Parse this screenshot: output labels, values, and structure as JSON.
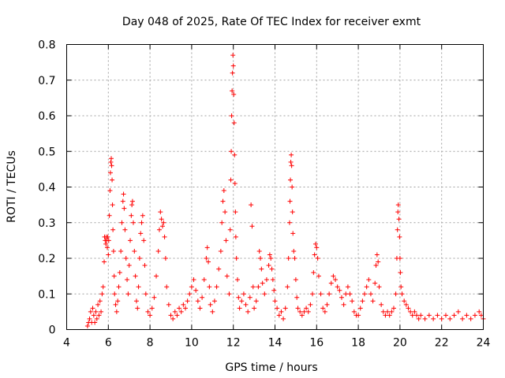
{
  "chart_data": {
    "type": "scatter",
    "title": "Day 048 of 2025, Rate Of TEC Index for receiver exmt",
    "xlabel": "GPS time / hours",
    "ylabel": "ROTI / TECUs",
    "xlim": [
      4,
      24
    ],
    "ylim": [
      0,
      0.8
    ],
    "x_ticks": [
      4,
      6,
      8,
      10,
      12,
      14,
      16,
      18,
      20,
      22,
      24
    ],
    "y_ticks": [
      0,
      0.1,
      0.2,
      0.3,
      0.4,
      0.5,
      0.6,
      0.7,
      0.8
    ],
    "x_tick_labels": [
      "4",
      "6",
      "8",
      "10",
      "12",
      "14",
      "16",
      "18",
      "20",
      "22",
      "24"
    ],
    "y_tick_labels": [
      "0",
      "0.1",
      "0.2",
      "0.3",
      "0.4",
      "0.5",
      "0.6",
      "0.7",
      "0.8"
    ],
    "grid": true,
    "marker": "plus",
    "color": "#ff0000",
    "series": [
      {
        "name": "ROTI",
        "points": [
          [
            5.0,
            0.01
          ],
          [
            5.05,
            0.02
          ],
          [
            5.1,
            0.03
          ],
          [
            5.15,
            0.05
          ],
          [
            5.2,
            0.02
          ],
          [
            5.25,
            0.06
          ],
          [
            5.3,
            0.04
          ],
          [
            5.35,
            0.02
          ],
          [
            5.4,
            0.05
          ],
          [
            5.45,
            0.03
          ],
          [
            5.5,
            0.07
          ],
          [
            5.55,
            0.04
          ],
          [
            5.6,
            0.08
          ],
          [
            5.65,
            0.05
          ],
          [
            5.7,
            0.1
          ],
          [
            5.75,
            0.12
          ],
          [
            5.8,
            0.19
          ],
          [
            5.82,
            0.26
          ],
          [
            5.85,
            0.25
          ],
          [
            5.88,
            0.24
          ],
          [
            5.9,
            0.26
          ],
          [
            5.92,
            0.25
          ],
          [
            5.95,
            0.23
          ],
          [
            5.97,
            0.26
          ],
          [
            6.0,
            0.21
          ],
          [
            6.02,
            0.25
          ],
          [
            6.05,
            0.32
          ],
          [
            6.08,
            0.39
          ],
          [
            6.1,
            0.44
          ],
          [
            6.12,
            0.47
          ],
          [
            6.14,
            0.48
          ],
          [
            6.16,
            0.46
          ],
          [
            6.18,
            0.42
          ],
          [
            6.2,
            0.35
          ],
          [
            6.22,
            0.28
          ],
          [
            6.25,
            0.22
          ],
          [
            6.28,
            0.15
          ],
          [
            6.3,
            0.1
          ],
          [
            6.35,
            0.07
          ],
          [
            6.4,
            0.05
          ],
          [
            6.45,
            0.08
          ],
          [
            6.5,
            0.12
          ],
          [
            6.55,
            0.16
          ],
          [
            6.6,
            0.22
          ],
          [
            6.65,
            0.3
          ],
          [
            6.7,
            0.36
          ],
          [
            6.73,
            0.38
          ],
          [
            6.76,
            0.34
          ],
          [
            6.8,
            0.28
          ],
          [
            6.85,
            0.2
          ],
          [
            6.9,
            0.14
          ],
          [
            6.95,
            0.1
          ],
          [
            7.0,
            0.18
          ],
          [
            7.05,
            0.25
          ],
          [
            7.1,
            0.32
          ],
          [
            7.13,
            0.35
          ],
          [
            7.16,
            0.36
          ],
          [
            7.2,
            0.3
          ],
          [
            7.25,
            0.22
          ],
          [
            7.3,
            0.15
          ],
          [
            7.35,
            0.08
          ],
          [
            7.4,
            0.06
          ],
          [
            7.45,
            0.12
          ],
          [
            7.5,
            0.2
          ],
          [
            7.55,
            0.27
          ],
          [
            7.6,
            0.3
          ],
          [
            7.65,
            0.32
          ],
          [
            7.7,
            0.25
          ],
          [
            7.75,
            0.18
          ],
          [
            7.8,
            0.1
          ],
          [
            7.9,
            0.05
          ],
          [
            8.0,
            0.04
          ],
          [
            8.1,
            0.06
          ],
          [
            8.2,
            0.09
          ],
          [
            8.3,
            0.15
          ],
          [
            8.4,
            0.22
          ],
          [
            8.45,
            0.28
          ],
          [
            8.5,
            0.33
          ],
          [
            8.55,
            0.31
          ],
          [
            8.6,
            0.29
          ],
          [
            8.65,
            0.3
          ],
          [
            8.7,
            0.26
          ],
          [
            8.75,
            0.2
          ],
          [
            8.8,
            0.12
          ],
          [
            8.9,
            0.07
          ],
          [
            9.0,
            0.04
          ],
          [
            9.1,
            0.03
          ],
          [
            9.2,
            0.05
          ],
          [
            9.3,
            0.04
          ],
          [
            9.4,
            0.06
          ],
          [
            9.5,
            0.05
          ],
          [
            9.6,
            0.07
          ],
          [
            9.7,
            0.06
          ],
          [
            9.8,
            0.08
          ],
          [
            9.9,
            0.1
          ],
          [
            10.0,
            0.12
          ],
          [
            10.1,
            0.14
          ],
          [
            10.2,
            0.11
          ],
          [
            10.3,
            0.08
          ],
          [
            10.4,
            0.06
          ],
          [
            10.5,
            0.09
          ],
          [
            10.6,
            0.14
          ],
          [
            10.7,
            0.2
          ],
          [
            10.75,
            0.23
          ],
          [
            10.8,
            0.19
          ],
          [
            10.85,
            0.12
          ],
          [
            10.9,
            0.07
          ],
          [
            11.0,
            0.05
          ],
          [
            11.1,
            0.08
          ],
          [
            11.2,
            0.12
          ],
          [
            11.3,
            0.17
          ],
          [
            11.4,
            0.22
          ],
          [
            11.45,
            0.3
          ],
          [
            11.5,
            0.36
          ],
          [
            11.55,
            0.39
          ],
          [
            11.6,
            0.33
          ],
          [
            11.65,
            0.25
          ],
          [
            11.7,
            0.15
          ],
          [
            11.8,
            0.1
          ],
          [
            11.85,
            0.28
          ],
          [
            11.88,
            0.42
          ],
          [
            11.9,
            0.5
          ],
          [
            11.92,
            0.6
          ],
          [
            11.94,
            0.67
          ],
          [
            11.96,
            0.72
          ],
          [
            11.98,
            0.77
          ],
          [
            12.0,
            0.74
          ],
          [
            12.02,
            0.66
          ],
          [
            12.04,
            0.58
          ],
          [
            12.06,
            0.49
          ],
          [
            12.08,
            0.41
          ],
          [
            12.1,
            0.33
          ],
          [
            12.12,
            0.26
          ],
          [
            12.15,
            0.2
          ],
          [
            12.2,
            0.14
          ],
          [
            12.25,
            0.09
          ],
          [
            12.3,
            0.06
          ],
          [
            12.4,
            0.08
          ],
          [
            12.5,
            0.1
          ],
          [
            12.6,
            0.07
          ],
          [
            12.7,
            0.05
          ],
          [
            12.8,
            0.09
          ],
          [
            12.85,
            0.35
          ],
          [
            12.9,
            0.29
          ],
          [
            12.95,
            0.12
          ],
          [
            13.0,
            0.06
          ],
          [
            13.1,
            0.08
          ],
          [
            13.2,
            0.12
          ],
          [
            13.25,
            0.22
          ],
          [
            13.3,
            0.2
          ],
          [
            13.35,
            0.17
          ],
          [
            13.4,
            0.13
          ],
          [
            13.5,
            0.1
          ],
          [
            13.6,
            0.14
          ],
          [
            13.7,
            0.18
          ],
          [
            13.75,
            0.21
          ],
          [
            13.8,
            0.2
          ],
          [
            13.85,
            0.17
          ],
          [
            13.9,
            0.14
          ],
          [
            13.95,
            0.11
          ],
          [
            14.0,
            0.08
          ],
          [
            14.1,
            0.06
          ],
          [
            14.2,
            0.04
          ],
          [
            14.3,
            0.05
          ],
          [
            14.4,
            0.03
          ],
          [
            14.5,
            0.06
          ],
          [
            14.6,
            0.12
          ],
          [
            14.65,
            0.2
          ],
          [
            14.7,
            0.3
          ],
          [
            14.72,
            0.36
          ],
          [
            14.74,
            0.42
          ],
          [
            14.76,
            0.47
          ],
          [
            14.78,
            0.49
          ],
          [
            14.8,
            0.46
          ],
          [
            14.82,
            0.4
          ],
          [
            14.84,
            0.33
          ],
          [
            14.86,
            0.27
          ],
          [
            14.9,
            0.22
          ],
          [
            14.95,
            0.2
          ],
          [
            15.0,
            0.14
          ],
          [
            15.05,
            0.09
          ],
          [
            15.1,
            0.06
          ],
          [
            15.2,
            0.05
          ],
          [
            15.3,
            0.04
          ],
          [
            15.4,
            0.05
          ],
          [
            15.5,
            0.06
          ],
          [
            15.6,
            0.05
          ],
          [
            15.7,
            0.07
          ],
          [
            15.8,
            0.1
          ],
          [
            15.85,
            0.16
          ],
          [
            15.9,
            0.21
          ],
          [
            15.95,
            0.24
          ],
          [
            16.0,
            0.23
          ],
          [
            16.05,
            0.2
          ],
          [
            16.1,
            0.15
          ],
          [
            16.2,
            0.1
          ],
          [
            16.3,
            0.06
          ],
          [
            16.4,
            0.05
          ],
          [
            16.5,
            0.07
          ],
          [
            16.6,
            0.1
          ],
          [
            16.7,
            0.13
          ],
          [
            16.8,
            0.15
          ],
          [
            16.9,
            0.14
          ],
          [
            17.0,
            0.12
          ],
          [
            17.1,
            0.11
          ],
          [
            17.2,
            0.09
          ],
          [
            17.3,
            0.07
          ],
          [
            17.4,
            0.1
          ],
          [
            17.5,
            0.12
          ],
          [
            17.6,
            0.1
          ],
          [
            17.7,
            0.08
          ],
          [
            17.8,
            0.05
          ],
          [
            17.9,
            0.04
          ],
          [
            18.0,
            0.04
          ],
          [
            18.1,
            0.06
          ],
          [
            18.2,
            0.08
          ],
          [
            18.3,
            0.1
          ],
          [
            18.4,
            0.12
          ],
          [
            18.5,
            0.14
          ],
          [
            18.6,
            0.1
          ],
          [
            18.7,
            0.08
          ],
          [
            18.8,
            0.13
          ],
          [
            18.85,
            0.18
          ],
          [
            18.9,
            0.21
          ],
          [
            18.95,
            0.19
          ],
          [
            19.0,
            0.12
          ],
          [
            19.1,
            0.07
          ],
          [
            19.2,
            0.05
          ],
          [
            19.3,
            0.04
          ],
          [
            19.4,
            0.05
          ],
          [
            19.5,
            0.04
          ],
          [
            19.6,
            0.05
          ],
          [
            19.7,
            0.06
          ],
          [
            19.8,
            0.1
          ],
          [
            19.85,
            0.2
          ],
          [
            19.88,
            0.28
          ],
          [
            19.9,
            0.33
          ],
          [
            19.92,
            0.35
          ],
          [
            19.95,
            0.31
          ],
          [
            19.98,
            0.26
          ],
          [
            20.0,
            0.2
          ],
          [
            20.02,
            0.16
          ],
          [
            20.05,
            0.12
          ],
          [
            20.1,
            0.1
          ],
          [
            20.2,
            0.08
          ],
          [
            20.3,
            0.07
          ],
          [
            20.4,
            0.06
          ],
          [
            20.5,
            0.05
          ],
          [
            20.6,
            0.04
          ],
          [
            20.7,
            0.05
          ],
          [
            20.8,
            0.04
          ],
          [
            20.9,
            0.03
          ],
          [
            21.0,
            0.04
          ],
          [
            21.2,
            0.03
          ],
          [
            21.4,
            0.04
          ],
          [
            21.6,
            0.03
          ],
          [
            21.8,
            0.04
          ],
          [
            22.0,
            0.03
          ],
          [
            22.2,
            0.04
          ],
          [
            22.4,
            0.03
          ],
          [
            22.6,
            0.04
          ],
          [
            22.8,
            0.05
          ],
          [
            23.0,
            0.03
          ],
          [
            23.2,
            0.04
          ],
          [
            23.4,
            0.03
          ],
          [
            23.6,
            0.04
          ],
          [
            23.8,
            0.05
          ],
          [
            23.9,
            0.04
          ],
          [
            24.0,
            0.03
          ]
        ]
      }
    ]
  }
}
